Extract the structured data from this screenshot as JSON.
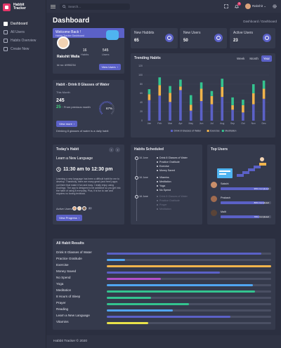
{
  "app": {
    "name_line1": "Habbit",
    "name_line2": "Tracker",
    "footer": "Habbit Tracker © 2020"
  },
  "sidebar": {
    "items": [
      {
        "label": "Dashboard",
        "active": true
      },
      {
        "label": "All Users",
        "active": false
      },
      {
        "label": "Habits Overview",
        "active": false
      },
      {
        "label": "Create New",
        "active": false
      }
    ]
  },
  "topbar": {
    "search_placeholder": "Search...",
    "notifications": "3",
    "user": "Rakshit"
  },
  "page": {
    "title": "Dashboard",
    "breadcrumb": "Dashboard / Dashboard"
  },
  "welcome": {
    "title": "Welcome Back !",
    "subtitle": "Habbit Tracker Dashboard",
    "name": "Rakshit Walia",
    "id": "Id no: #990234",
    "habits_value": "16",
    "habits_label": "Habits",
    "users_value": "545",
    "users_label": "Users",
    "button": "View Users"
  },
  "kpis": [
    {
      "label": "New Habbits",
      "value": "65",
      "icon": "target-icon"
    },
    {
      "label": "New Users",
      "value": "50",
      "icon": "user-plus-icon"
    },
    {
      "label": "Active Users",
      "value": "23",
      "icon": "users-icon"
    }
  ],
  "habit_card": {
    "title": "Habit - Drink 8 Glasses of Water",
    "period": "This Month",
    "value": "245",
    "change_value": "25",
    "change_text": "From previous month",
    "gauge_percent": 67,
    "gauge_label": "67%",
    "button": "View more",
    "footer": "Drinking 8 glasses of water is a daily habit"
  },
  "trending": {
    "title": "Trending Habits",
    "ranges": [
      {
        "label": "Week",
        "active": false
      },
      {
        "label": "Month",
        "active": false
      },
      {
        "label": "Year",
        "active": true
      }
    ]
  },
  "chart_data": {
    "type": "bar",
    "title": "Trending Habits",
    "stacked": true,
    "categories": [
      "Jan",
      "Feb",
      "Mar",
      "Apr",
      "May",
      "Jun",
      "Jul",
      "Aug",
      "Sep",
      "Oct",
      "Nov",
      "Dec"
    ],
    "ylim": [
      0,
      120
    ],
    "yticks": [
      0,
      20,
      40,
      60,
      80,
      100,
      120
    ],
    "grid": true,
    "legend_position": "bottom",
    "series": [
      {
        "name": "Drink 8 Glasses of Water",
        "color": "#5b61c7",
        "values": [
          45,
          55,
          41,
          67,
          22,
          43,
          36,
          52,
          24,
          18,
          36,
          48
        ]
      },
      {
        "name": "Exercise",
        "color": "#f1b44c",
        "values": [
          13,
          23,
          20,
          8,
          13,
          27,
          18,
          22,
          10,
          16,
          24,
          22
        ]
      },
      {
        "name": "Meditation",
        "color": "#34c38f",
        "values": [
          11,
          17,
          15,
          15,
          21,
          14,
          11,
          18,
          17,
          12,
          20,
          18
        ]
      }
    ]
  },
  "today": {
    "title": "Today's Habit",
    "habit": "Learn a New Language",
    "time": "11:30 am to 12:30 pm",
    "description": "Learning a new language has been a difficult habit for me to develop. Thankfully, there are many great (and free!) apps out there that make it fun and easy. I really enjoy using Duolingo. The app is designed to be addictive so you get into the habit of using it everyday. Plus, it is fun to use and requires no boring textbook.",
    "active_users": "Active Users",
    "more": "4+",
    "button": "View Progress"
  },
  "schedule": {
    "title": "Habits Scheduled",
    "groups": [
      {
        "date": "16 June",
        "items": [
          "Drink 8 Glasses of Water",
          "Practice Gratitude",
          "Exercise",
          "Money Saved"
        ],
        "dim": false
      },
      {
        "date": "16 June",
        "items": [
          "Vitamins",
          "Meditation",
          "Yoga",
          "No Spend"
        ],
        "dim": false
      },
      {
        "date": "16 June",
        "items": [
          "Drink 8 Glasses of Water",
          "Practice Gratitude",
          "Prayer",
          "Meditation"
        ],
        "dim": true
      }
    ]
  },
  "top_users": {
    "title": "Top Users",
    "users": [
      {
        "name": "Sakshi",
        "percent": 95,
        "label": "95% Completed"
      },
      {
        "name": "Prakash",
        "percent": 86,
        "label": "86% Completed"
      },
      {
        "name": "Malti",
        "percent": 76,
        "label": "76% Completed"
      }
    ]
  },
  "all_results": {
    "title": "All Habit Results",
    "habits": [
      {
        "name": "Drink 8 Glasses of Water",
        "percent": 94,
        "color": "#5b61c7"
      },
      {
        "name": "Practice Gratitude",
        "percent": 11,
        "color": "#50a5f1"
      },
      {
        "name": "Exercise",
        "percent": 100,
        "color": "#f1b44c"
      },
      {
        "name": "Money Saved",
        "percent": 69,
        "color": "#5b61c7"
      },
      {
        "name": "No Spend",
        "percent": 33,
        "color": "#b14fc9"
      },
      {
        "name": "Yoga",
        "percent": 89,
        "color": "#50a5f1"
      },
      {
        "name": "Meditation",
        "percent": 90,
        "color": "#34c38f"
      },
      {
        "name": "8 Hours of Sleep",
        "percent": 27,
        "color": "#34c38f"
      },
      {
        "name": "Prayer",
        "percent": 50,
        "color": "#34c38f"
      },
      {
        "name": "Reading",
        "percent": 40,
        "color": "#50a5f1"
      },
      {
        "name": "Learn a New Language",
        "percent": 75,
        "color": "#5b61c7"
      },
      {
        "name": "Vitamins",
        "percent": 25,
        "color": "#e8e24a"
      }
    ]
  }
}
